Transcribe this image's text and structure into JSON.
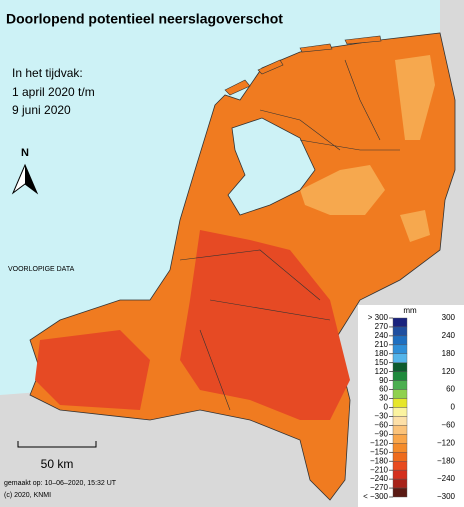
{
  "title": "Doorlopend potentieel neerslagoverschot",
  "period": [
    "In het tijdvak:",
    "1 april 2020 t/m",
    "9 juni 2020"
  ],
  "north": "N",
  "watermark": "VOORLOPIGE DATA",
  "scale_label": "50 km",
  "footer": [
    "gemaakt op: 10–06–2020, 15:32 UT",
    "(c) 2020, KNMI"
  ],
  "legend": {
    "unit": "mm",
    "left_labels": [
      "> 300",
      "270",
      "240",
      "210",
      "180",
      "150",
      "120",
      "90",
      "60",
      "30",
      "0",
      "−30",
      "−60",
      "−90",
      "−120",
      "−150",
      "−180",
      "−210",
      "−240",
      "−270",
      "< −300"
    ],
    "right_labels": [
      "300",
      "240",
      "180",
      "120",
      "60",
      "0",
      "−60",
      "−120",
      "−180",
      "−240",
      "−300"
    ],
    "colors": [
      "#1a237e",
      "#1f4fa0",
      "#1e6fc0",
      "#2f8fd8",
      "#55b5ea",
      "#0e5b2e",
      "#1e8a3c",
      "#4caf50",
      "#8fd14f",
      "#e6e62a",
      "#fbf3a0",
      "#fde0a8",
      "#fbc37a",
      "#f9a64a",
      "#f48b2a",
      "#ee6b1c",
      "#e84a1e",
      "#d42f1d",
      "#a8231a",
      "#5a1a14"
    ]
  }
}
